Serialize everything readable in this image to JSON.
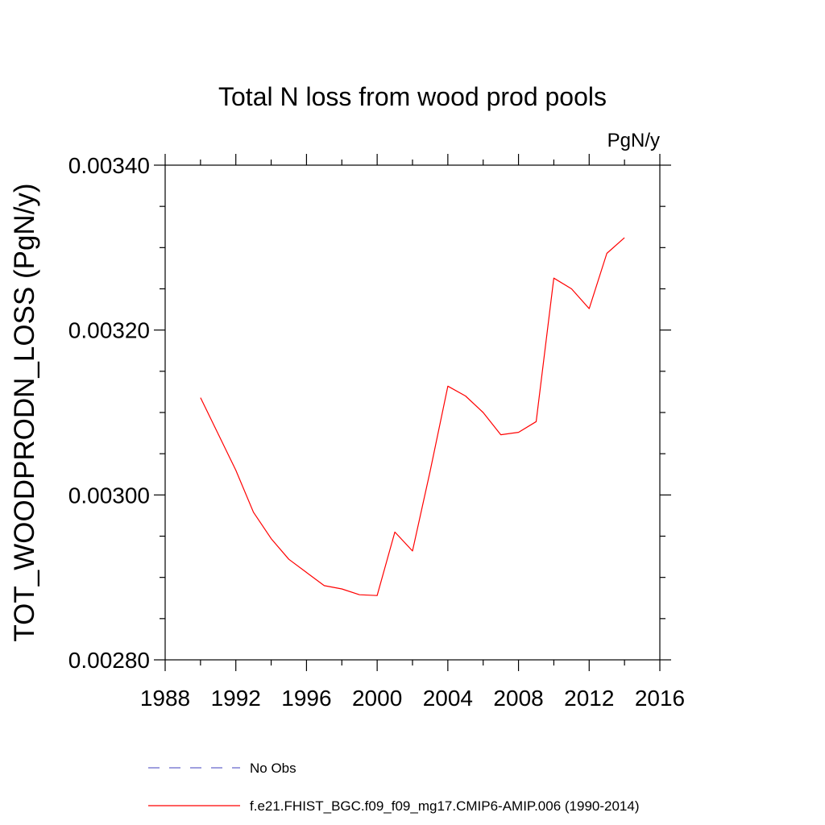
{
  "chart_data": {
    "type": "line",
    "title": "Total N loss from wood prod pools",
    "units": "PgN/y",
    "xlabel": "",
    "ylabel": "TOT_WOODPRODN_LOSS  (PgN/y)",
    "xlim": [
      1988,
      2016
    ],
    "ylim": [
      0.0028,
      0.0034
    ],
    "xticks": [
      1988,
      1992,
      1996,
      2000,
      2004,
      2008,
      2012,
      2016
    ],
    "xtick_labels": [
      "1988",
      "1992",
      "1996",
      "2000",
      "2004",
      "2008",
      "2012",
      "2016"
    ],
    "yticks": [
      0.0028,
      0.003,
      0.0032,
      0.0034
    ],
    "ytick_labels": [
      "0.00280",
      "0.00300",
      "0.00320",
      "0.00340"
    ],
    "grid": false,
    "series": [
      {
        "name": "f.e21.FHIST_BGC.f09_f09_mg17.CMIP6-AMIP.006 (1990-2014)",
        "color": "#ff0000",
        "style": "solid",
        "x": [
          1990,
          1991,
          1992,
          1993,
          1994,
          1995,
          1996,
          1997,
          1998,
          1999,
          2000,
          2001,
          2002,
          2003,
          2004,
          2005,
          2006,
          2007,
          2008,
          2009,
          2010,
          2011,
          2012,
          2013,
          2014
        ],
        "values": [
          0.003118,
          0.003074,
          0.00303,
          0.002979,
          0.002947,
          0.002922,
          0.002906,
          0.00289,
          0.002886,
          0.002879,
          0.002878,
          0.002955,
          0.002932,
          0.003029,
          0.003132,
          0.00312,
          0.0031,
          0.003073,
          0.003076,
          0.003089,
          0.003263,
          0.00325,
          0.003226,
          0.003293,
          0.003312
        ]
      }
    ],
    "legend": {
      "placement": "bottom-left",
      "entries": [
        {
          "label": "No Obs",
          "color": "#6666cc",
          "style": "dashed"
        },
        {
          "label": "f.e21.FHIST_BGC.f09_f09_mg17.CMIP6-AMIP.006 (1990-2014)",
          "color": "#ff0000",
          "style": "solid"
        }
      ]
    }
  }
}
